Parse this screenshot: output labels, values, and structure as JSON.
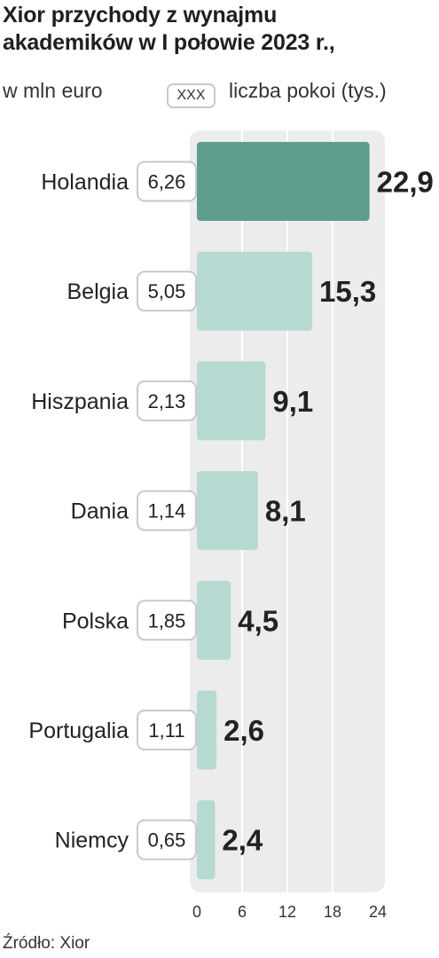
{
  "chart_data": {
    "type": "bar",
    "orientation": "horizontal",
    "title": "Xior przychody z wynajmu\nakademików w I połowie 2023 r.,",
    "unit_label": "w mln euro",
    "legend": {
      "box_text": "XXX",
      "label": "liczba pokoi (tys.)"
    },
    "categories": [
      "Holandia",
      "Belgia",
      "Hiszpania",
      "Dania",
      "Polska",
      "Portugalia",
      "Niemcy"
    ],
    "values": [
      22.9,
      15.3,
      9.1,
      8.1,
      4.5,
      2.6,
      2.4
    ],
    "value_labels": [
      "22,9",
      "15,3",
      "9,1",
      "8,1",
      "4,5",
      "2,6",
      "2,4"
    ],
    "rooms_labels": [
      "6,26",
      "5,05",
      "2,13",
      "1,14",
      "1,85",
      "1,11",
      "0,65"
    ],
    "xlim": [
      0,
      24
    ],
    "xticks": [
      "0",
      "6",
      "12",
      "18",
      "24"
    ],
    "grid": true,
    "source": "Źródło: Xior"
  },
  "colors": {
    "highlight_bar": "#5f9e8e",
    "bar": "#b6d9d1",
    "plot_background": "#ececec",
    "gridline": "#ffffff",
    "box_border": "#c9c9c9",
    "text": "#222222"
  }
}
